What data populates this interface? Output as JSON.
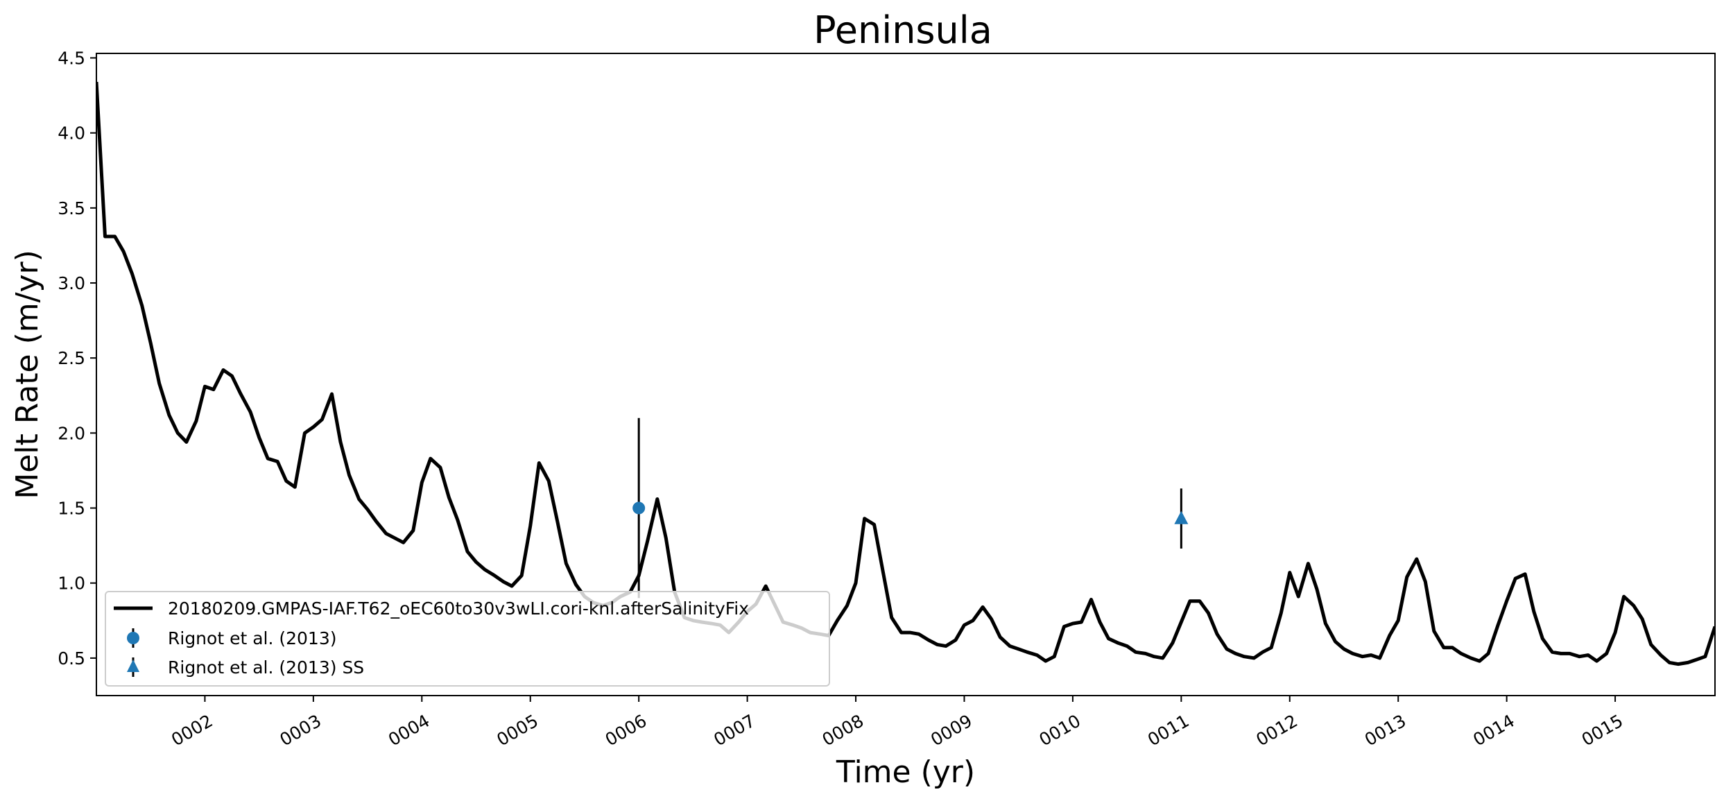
{
  "chart_data": {
    "type": "line",
    "title": "Peninsula",
    "xlabel": "Time (yr)",
    "ylabel": "Melt Rate (m/yr)",
    "xlim": [
      1.0,
      15.92
    ],
    "ylim": [
      0.25,
      4.53
    ],
    "x_ticks": [
      2,
      3,
      4,
      5,
      6,
      7,
      8,
      9,
      10,
      11,
      12,
      13,
      14,
      15
    ],
    "x_tick_labels": [
      "0002",
      "0003",
      "0004",
      "0005",
      "0006",
      "0007",
      "0008",
      "0009",
      "0010",
      "0011",
      "0012",
      "0013",
      "0014",
      "0015"
    ],
    "y_ticks": [
      0.5,
      1.0,
      1.5,
      2.0,
      2.5,
      3.0,
      3.5,
      4.0,
      4.5
    ],
    "y_tick_labels": [
      "0.5",
      "1.0",
      "1.5",
      "2.0",
      "2.5",
      "3.0",
      "3.5",
      "4.0",
      "4.5"
    ],
    "grid": false,
    "legend_position": "lower-left",
    "series": [
      {
        "name": "20180209.GMPAS-IAF.T62_oEC60to30v3wLI.cori-knl.afterSalinityFix",
        "kind": "line",
        "color": "#000000",
        "x": [
          1.0,
          1.08,
          1.17,
          1.25,
          1.33,
          1.42,
          1.5,
          1.58,
          1.67,
          1.75,
          1.83,
          1.92,
          2.0,
          2.08,
          2.17,
          2.25,
          2.33,
          2.42,
          2.5,
          2.58,
          2.67,
          2.75,
          2.83,
          2.92,
          3.0,
          3.08,
          3.17,
          3.25,
          3.33,
          3.42,
          3.5,
          3.58,
          3.67,
          3.75,
          3.83,
          3.92,
          4.0,
          4.08,
          4.17,
          4.25,
          4.33,
          4.42,
          4.5,
          4.58,
          4.67,
          4.75,
          4.83,
          4.92,
          5.0,
          5.08,
          5.17,
          5.25,
          5.33,
          5.42,
          5.5,
          5.58,
          5.67,
          5.75,
          5.83,
          5.92,
          6.0,
          6.08,
          6.17,
          6.25,
          6.33,
          6.42,
          6.5,
          6.58,
          6.67,
          6.75,
          6.83,
          6.92,
          7.0,
          7.08,
          7.17,
          7.25,
          7.33,
          7.42,
          7.5,
          7.58,
          7.67,
          7.75,
          7.83,
          7.92,
          8.0,
          8.08,
          8.17,
          8.25,
          8.33,
          8.42,
          8.5,
          8.58,
          8.67,
          8.75,
          8.83,
          8.92,
          9.0,
          9.08,
          9.17,
          9.25,
          9.33,
          9.42,
          9.5,
          9.58,
          9.67,
          9.75,
          9.83,
          9.92,
          10.0,
          10.08,
          10.17,
          10.25,
          10.33,
          10.42,
          10.5,
          10.58,
          10.67,
          10.75,
          10.83,
          10.92,
          11.0,
          11.08,
          11.17,
          11.25,
          11.33,
          11.42,
          11.5,
          11.58,
          11.67,
          11.75,
          11.83,
          11.92,
          12.0,
          12.08,
          12.17,
          12.25,
          12.33,
          12.42,
          12.5,
          12.58,
          12.67,
          12.75,
          12.83,
          12.92,
          13.0,
          13.08,
          13.17,
          13.25,
          13.33,
          13.42,
          13.5,
          13.58,
          13.67,
          13.75,
          13.83,
          13.92,
          14.0,
          14.08,
          14.17,
          14.25,
          14.33,
          14.42,
          14.5,
          14.58,
          14.67,
          14.75,
          14.83,
          14.92,
          15.0,
          15.08,
          15.17,
          15.25,
          15.33,
          15.42,
          15.5,
          15.58,
          15.67,
          15.75,
          15.83,
          15.92
        ],
        "y": [
          4.34,
          3.31,
          3.31,
          3.21,
          3.06,
          2.85,
          2.6,
          2.33,
          2.12,
          2.0,
          1.94,
          2.08,
          2.31,
          2.29,
          2.42,
          2.38,
          2.26,
          2.14,
          1.97,
          1.83,
          1.81,
          1.68,
          1.64,
          2.0,
          2.04,
          2.09,
          2.26,
          1.94,
          1.72,
          1.56,
          1.49,
          1.41,
          1.33,
          1.3,
          1.27,
          1.35,
          1.67,
          1.83,
          1.77,
          1.57,
          1.42,
          1.21,
          1.14,
          1.09,
          1.05,
          1.01,
          0.98,
          1.05,
          1.38,
          1.8,
          1.68,
          1.41,
          1.13,
          0.99,
          0.91,
          0.87,
          0.85,
          0.87,
          0.91,
          0.94,
          1.05,
          1.28,
          1.56,
          1.3,
          0.94,
          0.77,
          0.75,
          0.74,
          0.73,
          0.72,
          0.67,
          0.74,
          0.81,
          0.86,
          0.98,
          0.86,
          0.74,
          0.72,
          0.7,
          0.67,
          0.66,
          0.65,
          0.75,
          0.85,
          1.0,
          1.43,
          1.39,
          1.08,
          0.77,
          0.67,
          0.67,
          0.66,
          0.62,
          0.59,
          0.58,
          0.62,
          0.72,
          0.75,
          0.84,
          0.76,
          0.64,
          0.58,
          0.56,
          0.54,
          0.52,
          0.48,
          0.51,
          0.71,
          0.73,
          0.74,
          0.89,
          0.74,
          0.63,
          0.6,
          0.58,
          0.54,
          0.53,
          0.51,
          0.5,
          0.6,
          0.74,
          0.88,
          0.88,
          0.8,
          0.66,
          0.56,
          0.53,
          0.51,
          0.5,
          0.54,
          0.57,
          0.8,
          1.07,
          0.91,
          1.13,
          0.96,
          0.73,
          0.61,
          0.56,
          0.53,
          0.51,
          0.52,
          0.5,
          0.65,
          0.75,
          1.04,
          1.16,
          1.01,
          0.68,
          0.57,
          0.57,
          0.53,
          0.5,
          0.48,
          0.53,
          0.72,
          0.88,
          1.03,
          1.06,
          0.81,
          0.63,
          0.54,
          0.53,
          0.53,
          0.51,
          0.52,
          0.48,
          0.53,
          0.67,
          0.91,
          0.85,
          0.76,
          0.59,
          0.52,
          0.47,
          0.46,
          0.47,
          0.49,
          0.51,
          0.71
        ]
      },
      {
        "name": "Rignot et al. (2013)",
        "kind": "errorbar",
        "marker": "circle",
        "color": "#1f77b4",
        "x": [
          6.0
        ],
        "y": [
          1.5
        ],
        "yerr": [
          0.6
        ]
      },
      {
        "name": "Rignot et al. (2013) SS",
        "kind": "errorbar",
        "marker": "triangle",
        "color": "#1f77b4",
        "x": [
          11.0
        ],
        "y": [
          1.43
        ],
        "yerr": [
          0.2
        ]
      }
    ]
  }
}
